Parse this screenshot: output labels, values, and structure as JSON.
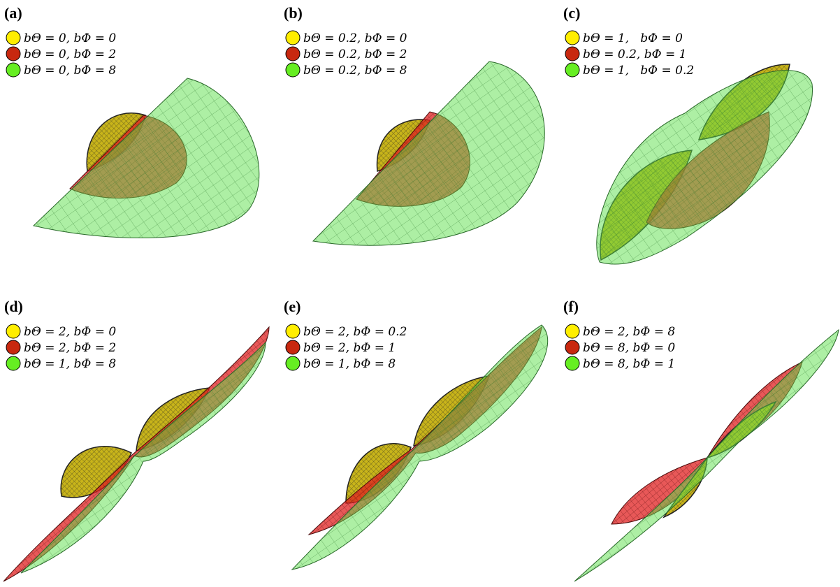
{
  "panels": [
    {
      "label": "(a)",
      "legend": [
        "bΘ = 0, bΦ = 0",
        "bΘ = 0, bΦ = 2",
        "bΘ = 0, bΦ = 8"
      ]
    },
    {
      "label": "(b)",
      "legend": [
        "bΘ = 0.2, bΦ = 0",
        "bΘ = 0.2, bΦ = 2",
        "bΘ = 0.2, bΦ = 8"
      ]
    },
    {
      "label": "(c)",
      "legend": [
        "bΘ = 1,   bΦ = 0",
        "bΘ = 0.2, bΦ = 1",
        "bΘ = 1,   bΦ = 0.2"
      ]
    },
    {
      "label": "(d)",
      "legend": [
        "bΘ = 2, bΦ = 0",
        "bΘ = 2, bΦ = 2",
        "bΘ = 1, bΦ = 8"
      ]
    },
    {
      "label": "(e)",
      "legend": [
        "bΘ = 2, bΦ = 0.2",
        "bΘ = 2, bΦ = 1",
        "bΘ = 1, bΦ = 8"
      ]
    },
    {
      "label": "(f)",
      "legend": [
        "bΘ = 2, bΦ = 8",
        "bΘ = 8, bΦ = 0",
        "bΘ = 8, bΦ = 1"
      ]
    }
  ]
}
